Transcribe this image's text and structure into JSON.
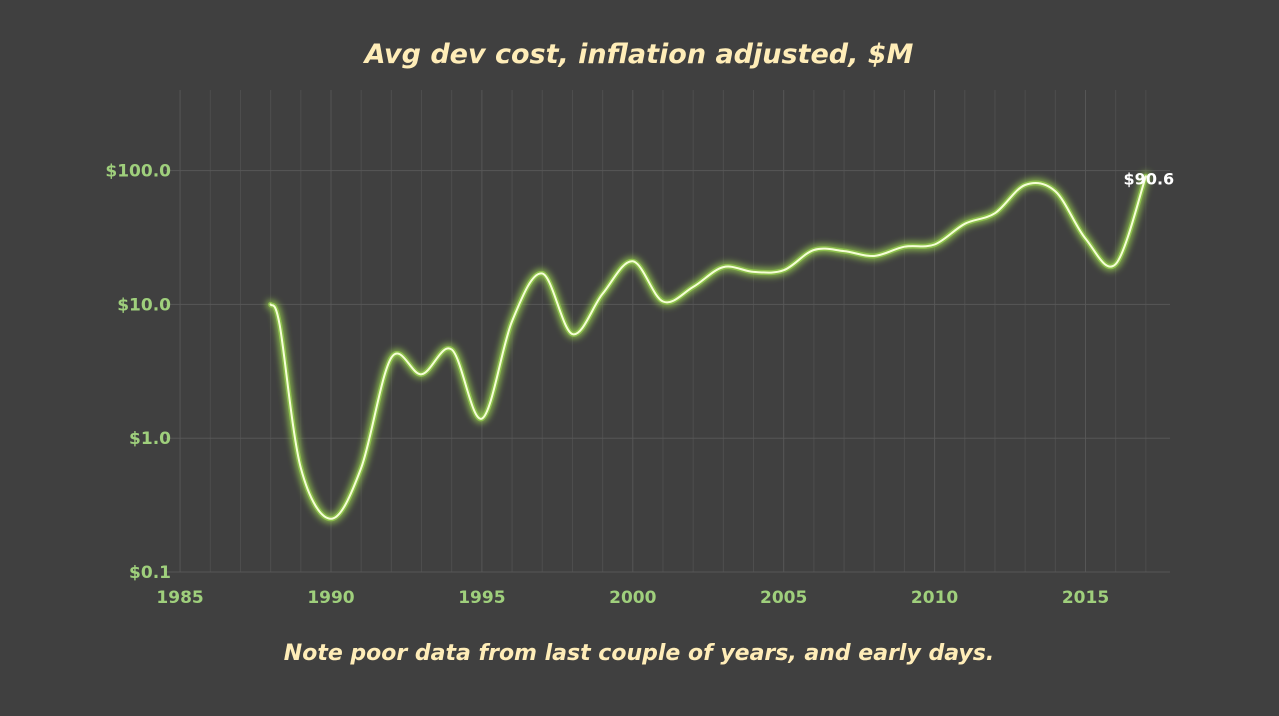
{
  "chart_data": {
    "type": "line",
    "title": "Avg dev cost, inflation adjusted, $M",
    "note": "Note poor data from last couple of years, and early days.",
    "xlabel": "",
    "ylabel": "",
    "xlim": [
      1984.5,
      2017.8
    ],
    "ylim": [
      0.1,
      400
    ],
    "yscale": "log",
    "x_ticks": [
      1985,
      1990,
      1995,
      2000,
      2005,
      2010,
      2015
    ],
    "x_tick_labels": [
      "1985",
      "1990",
      "1995",
      "2000",
      "2005",
      "2010",
      "2015"
    ],
    "y_ticks": [
      0.1,
      1,
      10,
      100
    ],
    "y_tick_labels": [
      "$0.1",
      "$1.0",
      "$10.0",
      "$100.0"
    ],
    "grid": true,
    "series": [
      {
        "name": "Avg dev cost",
        "x": [
          1988,
          1988.3,
          1989,
          1990,
          1991,
          1992,
          1993,
          1994,
          1995,
          1996,
          1997,
          1998,
          1999,
          2000,
          2001,
          2002,
          2003,
          2004,
          2005,
          2006,
          2007,
          2008,
          2009,
          2010,
          2011,
          2012,
          2013,
          2014,
          2015,
          2016,
          2017
        ],
        "values": [
          10,
          7,
          0.6,
          0.25,
          0.6,
          4,
          3,
          4.6,
          1.4,
          7.5,
          17,
          6,
          12,
          21,
          10.5,
          13.5,
          19,
          17.5,
          18,
          25.5,
          25,
          23,
          27,
          28,
          40,
          48,
          78,
          70,
          31,
          20,
          90.6
        ]
      }
    ],
    "annotations": [
      {
        "x": 2017,
        "value": 90.6,
        "text": "$90.6"
      }
    ],
    "colors": {
      "background": "#404040",
      "title": "#ffedb8",
      "ticks": "#9fcf7c",
      "line": "#f6ffd6",
      "glow": "#8fc24e",
      "grid": "#595959",
      "annotation": "#ffffff"
    }
  }
}
